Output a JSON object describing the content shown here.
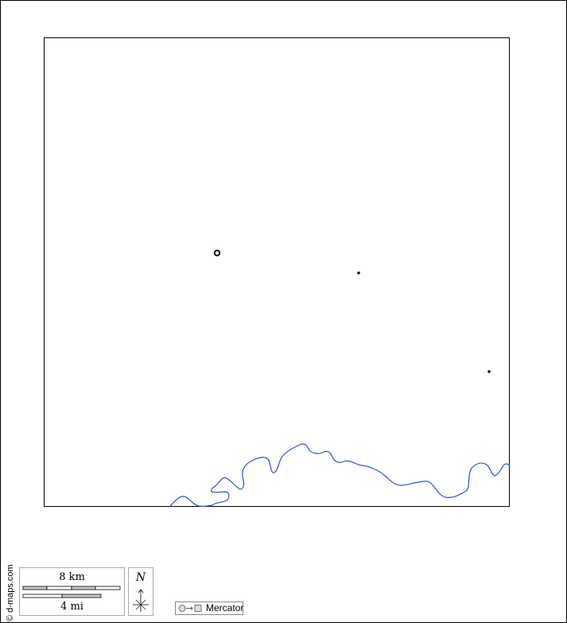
{
  "credit": "© d-maps.com",
  "scale": {
    "km_label": "8 km",
    "mi_label": "4 mi"
  },
  "north": {
    "label": "N"
  },
  "projection": {
    "label": "Mercator",
    "icon": "circle-to-square-icon"
  },
  "colors": {
    "river": "#2a55c8",
    "frame": "#000000",
    "scale_fill": "#c8c8c8"
  },
  "places": [
    {
      "type": "capital-circle"
    },
    {
      "type": "town-dot"
    },
    {
      "type": "town-dot"
    }
  ]
}
